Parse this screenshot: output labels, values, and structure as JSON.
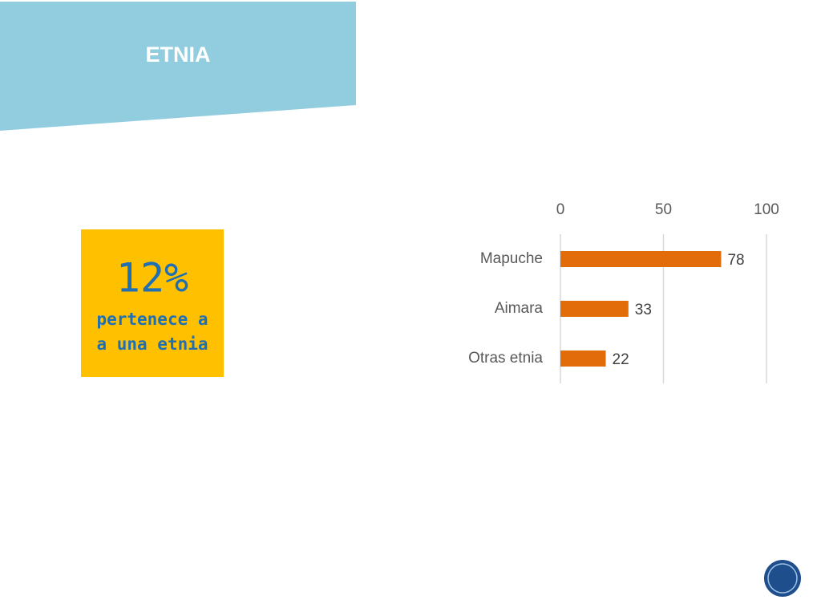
{
  "header": {
    "title": "ETNIA"
  },
  "callout": {
    "value": "12%",
    "lines": [
      "pertenece a",
      "a una etnia"
    ]
  },
  "chart_data": {
    "type": "bar",
    "orientation": "horizontal",
    "categories": [
      "Mapuche",
      "Aimara",
      "Otras etnia"
    ],
    "values": [
      78,
      33,
      22
    ],
    "color": "#e36c0a",
    "xlim": [
      0,
      100
    ],
    "xticks": [
      0,
      50,
      100
    ],
    "xaxis_position": "top",
    "grid": true
  }
}
